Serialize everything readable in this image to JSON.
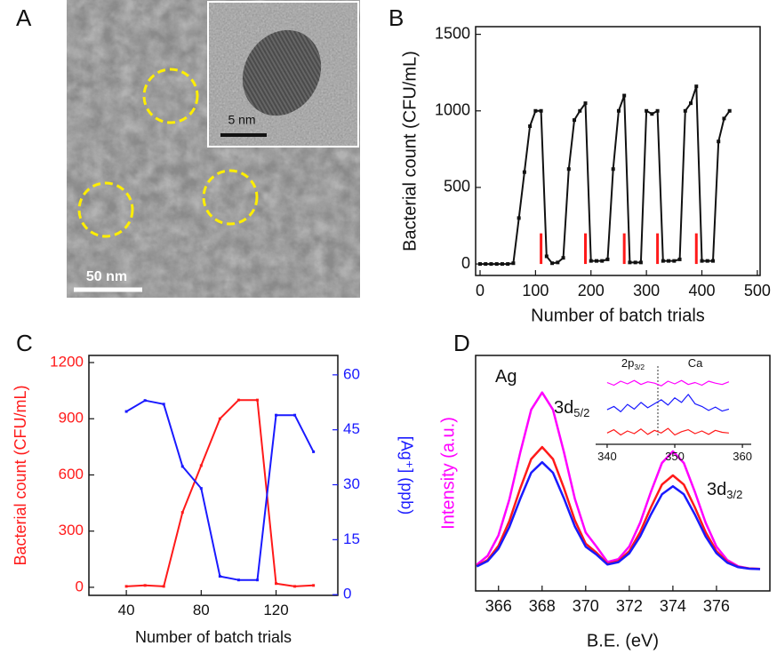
{
  "panel_a": {
    "label": "A",
    "inset_scale": "5 nm",
    "scale": "50 nm"
  },
  "chart_data": [
    {
      "type": "line",
      "label": "B",
      "xlabel": "Number of batch trials",
      "ylabel": "Bacterial count (CFU/mL)",
      "x": [
        0,
        10,
        20,
        30,
        40,
        50,
        60,
        70,
        80,
        90,
        100,
        110,
        120,
        130,
        140,
        150,
        160,
        170,
        180,
        190,
        200,
        210,
        220,
        230,
        240,
        250,
        260,
        270,
        280,
        290,
        300,
        310,
        320,
        330,
        340,
        350,
        360,
        370,
        380,
        390,
        400,
        410,
        420,
        430,
        440,
        450
      ],
      "values": [
        0,
        0,
        0,
        0,
        0,
        0,
        5,
        300,
        600,
        900,
        1000,
        1000,
        50,
        5,
        10,
        40,
        620,
        940,
        1000,
        1050,
        20,
        20,
        20,
        30,
        620,
        1000,
        1100,
        10,
        10,
        10,
        1000,
        980,
        1000,
        20,
        20,
        20,
        30,
        1000,
        1050,
        1160,
        20,
        20,
        20,
        800,
        950,
        1000
      ],
      "color": "#111111",
      "point_markers": true,
      "markers": {
        "x": [
          110,
          190,
          260,
          320,
          390
        ],
        "height": 200,
        "color": "#ff1a1a"
      },
      "xlim": [
        -8,
        505
      ],
      "xticks": [
        0,
        100,
        200,
        300,
        400,
        500
      ],
      "ylim": [
        -75,
        1550
      ],
      "yticks": [
        0,
        500,
        1000,
        1500
      ]
    },
    {
      "type": "line",
      "label": "C",
      "xlabel": "Number of batch trials",
      "ylabel": "Bacterial count (CFU/mL)",
      "y2label": "[Ag⁺] (ppb)",
      "x": [
        40,
        50,
        60,
        70,
        80,
        90,
        100,
        110,
        120,
        130,
        140
      ],
      "series": [
        {
          "color": "#ff1a1a",
          "values": [
            5,
            10,
            5,
            400,
            650,
            900,
            1000,
            1000,
            20,
            5,
            10
          ]
        },
        {
          "color": "#1a1aff",
          "axis": "y2",
          "values": [
            50,
            53,
            52,
            35,
            29,
            5,
            4,
            4,
            49,
            49,
            39
          ]
        }
      ],
      "point_markers": true,
      "xlim": [
        20,
        153
      ],
      "xticks": [
        40,
        80,
        120
      ],
      "ylim": [
        -43,
        1238
      ],
      "yticks": [
        0,
        300,
        600,
        900,
        1200
      ],
      "y2lim": [
        -0.2,
        65.3
      ],
      "y2ticks": [
        0,
        15,
        30,
        45,
        60
      ]
    },
    {
      "type": "line",
      "label": "D",
      "xlabel": "B.E. (eV)",
      "ylabel": "Intensity (a.u.)",
      "annotations": [
        {
          "text": "Ag"
        },
        {
          "text": "3d",
          "sub": "5/2"
        },
        {
          "text": "3d",
          "sub": "3/2"
        }
      ],
      "x": [
        365,
        365.5,
        366,
        366.5,
        367,
        367.5,
        368,
        368.5,
        369,
        369.5,
        370,
        370.5,
        371,
        371.5,
        372,
        372.5,
        373,
        373.5,
        374,
        374.5,
        375,
        375.5,
        376,
        376.5,
        377,
        377.5,
        378
      ],
      "series": [
        {
          "color": "#ff00ff",
          "values": [
            8.0,
            12.1,
            21.5,
            38.0,
            59.6,
            79.1,
            87,
            79.1,
            59.7,
            38.3,
            22.8,
            16.2,
            9.3,
            10.6,
            16.4,
            27.3,
            41.7,
            54.7,
            60,
            54.7,
            41.7,
            27.3,
            16.3,
            10.1,
            7.3,
            6.3,
            6.1
          ]
        },
        {
          "color": "#ff1a1a",
          "values": [
            7.4,
            10.2,
            16.7,
            28.1,
            43.1,
            56.5,
            62,
            56.5,
            43.2,
            28.4,
            17.7,
            13.5,
            8.4,
            9.7,
            14.2,
            23.0,
            34.5,
            44.8,
            49,
            44.8,
            34.5,
            23.0,
            14.2,
            9.3,
            7.0,
            6.3,
            6.1
          ]
        },
        {
          "color": "#1a1aff",
          "values": [
            7.2,
            9.7,
            15.4,
            25.4,
            38.4,
            50.2,
            55,
            50.2,
            38.5,
            25.6,
            16.3,
            12.6,
            8.1,
            9.2,
            13.3,
            21.0,
            31.2,
            40.3,
            44,
            40.3,
            31.2,
            21.0,
            13.3,
            8.9,
            6.9,
            6.2,
            6.0
          ]
        }
      ],
      "point_markers": false,
      "xlim": [
        364.95,
        378.45
      ],
      "xticks": [
        366,
        368,
        370,
        372,
        374,
        376
      ],
      "ylim": [
        -4,
        104
      ]
    },
    {
      "type": "line",
      "annotations": [
        {
          "text": "2p",
          "sub": "3/2"
        },
        {
          "text": "Ca"
        }
      ],
      "reference_line_x": 347.5,
      "x": [
        340,
        341,
        342,
        343,
        344,
        345,
        346,
        347,
        348,
        349,
        350,
        351,
        352,
        353,
        354,
        355,
        356,
        357,
        358
      ],
      "series": [
        {
          "color": "#ff00ff",
          "values": [
            8.6,
            8.2,
            8.8,
            8.4,
            8.9,
            8.3,
            8.7,
            8.5,
            8.1,
            8.8,
            8.4,
            8.9,
            8.3,
            8.6,
            8.2,
            8.8,
            8.5,
            8.3,
            8.7
          ]
        },
        {
          "color": "#1a1aff",
          "values": [
            4.5,
            5.0,
            4.2,
            5.3,
            4.6,
            5.6,
            4.8,
            5.4,
            6.0,
            5.2,
            6.3,
            5.6,
            6.8,
            5.4,
            5.0,
            4.4,
            4.9,
            4.3,
            4.6
          ]
        },
        {
          "color": "#ff1a1a",
          "values": [
            1.0,
            1.5,
            0.7,
            1.3,
            0.9,
            1.6,
            0.8,
            1.4,
            1.0,
            1.7,
            0.7,
            1.2,
            1.5,
            0.9,
            1.3,
            0.8,
            1.4,
            1.1,
            1.0
          ]
        }
      ],
      "point_markers": false,
      "xlim": [
        338.3,
        361.3
      ],
      "xticks": [
        340,
        350,
        360
      ],
      "ylim": [
        -0.7,
        10
      ]
    }
  ]
}
